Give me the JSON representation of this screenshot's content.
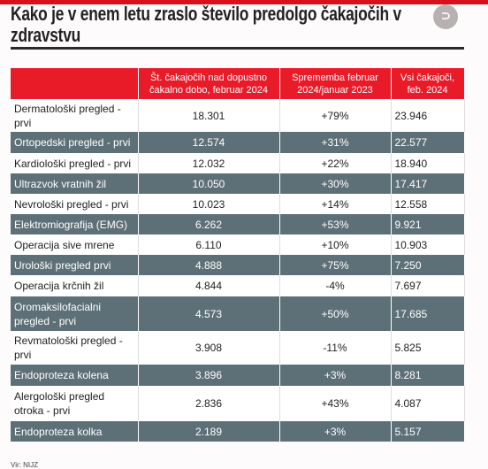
{
  "header": {
    "title": "Kako je v enem letu zraslo število predolgo čakajočih v zdravstvu"
  },
  "table": {
    "columns": [
      "",
      "Št. čakajočih nad dopustno čakalno dobo, februar 2024",
      "Sprememba februar 2024/januar 2023",
      "Vsi čakajoči, feb. 2024"
    ],
    "rows": [
      [
        "Dermatološki pregled - prvi",
        "18.301",
        "+79%",
        "23.946"
      ],
      [
        "Ortopedski pregled - prvi",
        "12.574",
        "+31%",
        "22.577"
      ],
      [
        "Kardiološki pregled - prvi",
        "12.032",
        "+22%",
        "18.940"
      ],
      [
        "Ultrazvok vratnih žil",
        "10.050",
        "+30%",
        "17.417"
      ],
      [
        "Nevrološki pregled - prvi",
        "10.023",
        "+14%",
        "12.558"
      ],
      [
        "Elektromiografija (EMG)",
        "6.262",
        "+53%",
        "9.921"
      ],
      [
        "Operacija sive mrene",
        "6.110",
        "+10%",
        "10.903"
      ],
      [
        "Urološki pregled prvi",
        "4.888",
        "+75%",
        "7.250"
      ],
      [
        "Operacija krčnih žil",
        "4.844",
        "-4%",
        "7.697"
      ],
      [
        "Oromaksilofacialni pregled - prvi",
        "4.573",
        "+50%",
        "17.685"
      ],
      [
        "Revmatološki pregled - prvi",
        "3.908",
        "-11%",
        "5.825"
      ],
      [
        "Endoproteza kolena",
        "3.896",
        "+3%",
        "8.281"
      ],
      [
        "Alergološki pregled otroka - prvi",
        "2.836",
        "+43%",
        "4.087"
      ],
      [
        "Endoproteza kolka",
        "2.189",
        "+3%",
        "5.157"
      ]
    ]
  },
  "source": "Vir: NIJZ"
}
